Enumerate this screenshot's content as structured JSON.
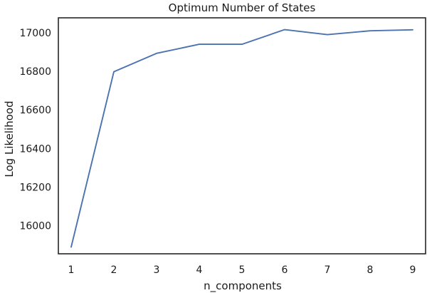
{
  "chart_data": {
    "type": "line",
    "title": "Optimum Number of States",
    "xlabel": "n_components",
    "ylabel": "Log Likelihood",
    "x": [
      1,
      2,
      3,
      4,
      5,
      6,
      7,
      8,
      9
    ],
    "series": [
      {
        "values": [
          15890,
          16798,
          16893,
          16940,
          16940,
          17016,
          16990,
          17010,
          17015
        ]
      }
    ],
    "xlim": [
      0.7,
      9.3
    ],
    "ylim": [
      15855,
      17077
    ],
    "xticks": [
      "1",
      "2",
      "3",
      "4",
      "5",
      "6",
      "7",
      "8",
      "9"
    ],
    "yticks": [
      "16000",
      "16200",
      "16400",
      "16600",
      "16800",
      "17000"
    ],
    "grid": false,
    "legend": "none",
    "colors": {
      "line": "#4c72b0",
      "frame": "#262626",
      "text": "#1a1a1a"
    }
  }
}
